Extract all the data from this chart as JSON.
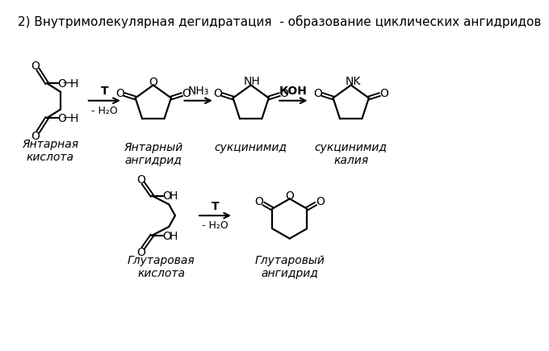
{
  "title": "2) Внутримолекулярная дегидратация  - образование циклических ангидридов",
  "title_fontsize": 11,
  "bg_color": "#ffffff",
  "text_color": "#000000",
  "label_yantar_acid": "Янтарная\nкислота",
  "label_yantar_anhydride": "Янтарный\nангидрид",
  "label_succinimide": "сукцинимид",
  "label_succinimide_k": "сукцинимид\nкалия",
  "label_glutar_acid": "Глутаровая\nкислота",
  "label_glutar_anhydride": "Глутаровый\nангидрид",
  "arrow1_label_top": "Т",
  "arrow1_label_bot": "- H₂O",
  "arrow2_label_top": "NH₃",
  "arrow3_label_top": "КОН",
  "arrow4_label_top": "Т",
  "arrow4_label_bot": "- H₂O",
  "lw": 1.6,
  "fs": 10,
  "fs_small": 9,
  "fs_label": 10
}
